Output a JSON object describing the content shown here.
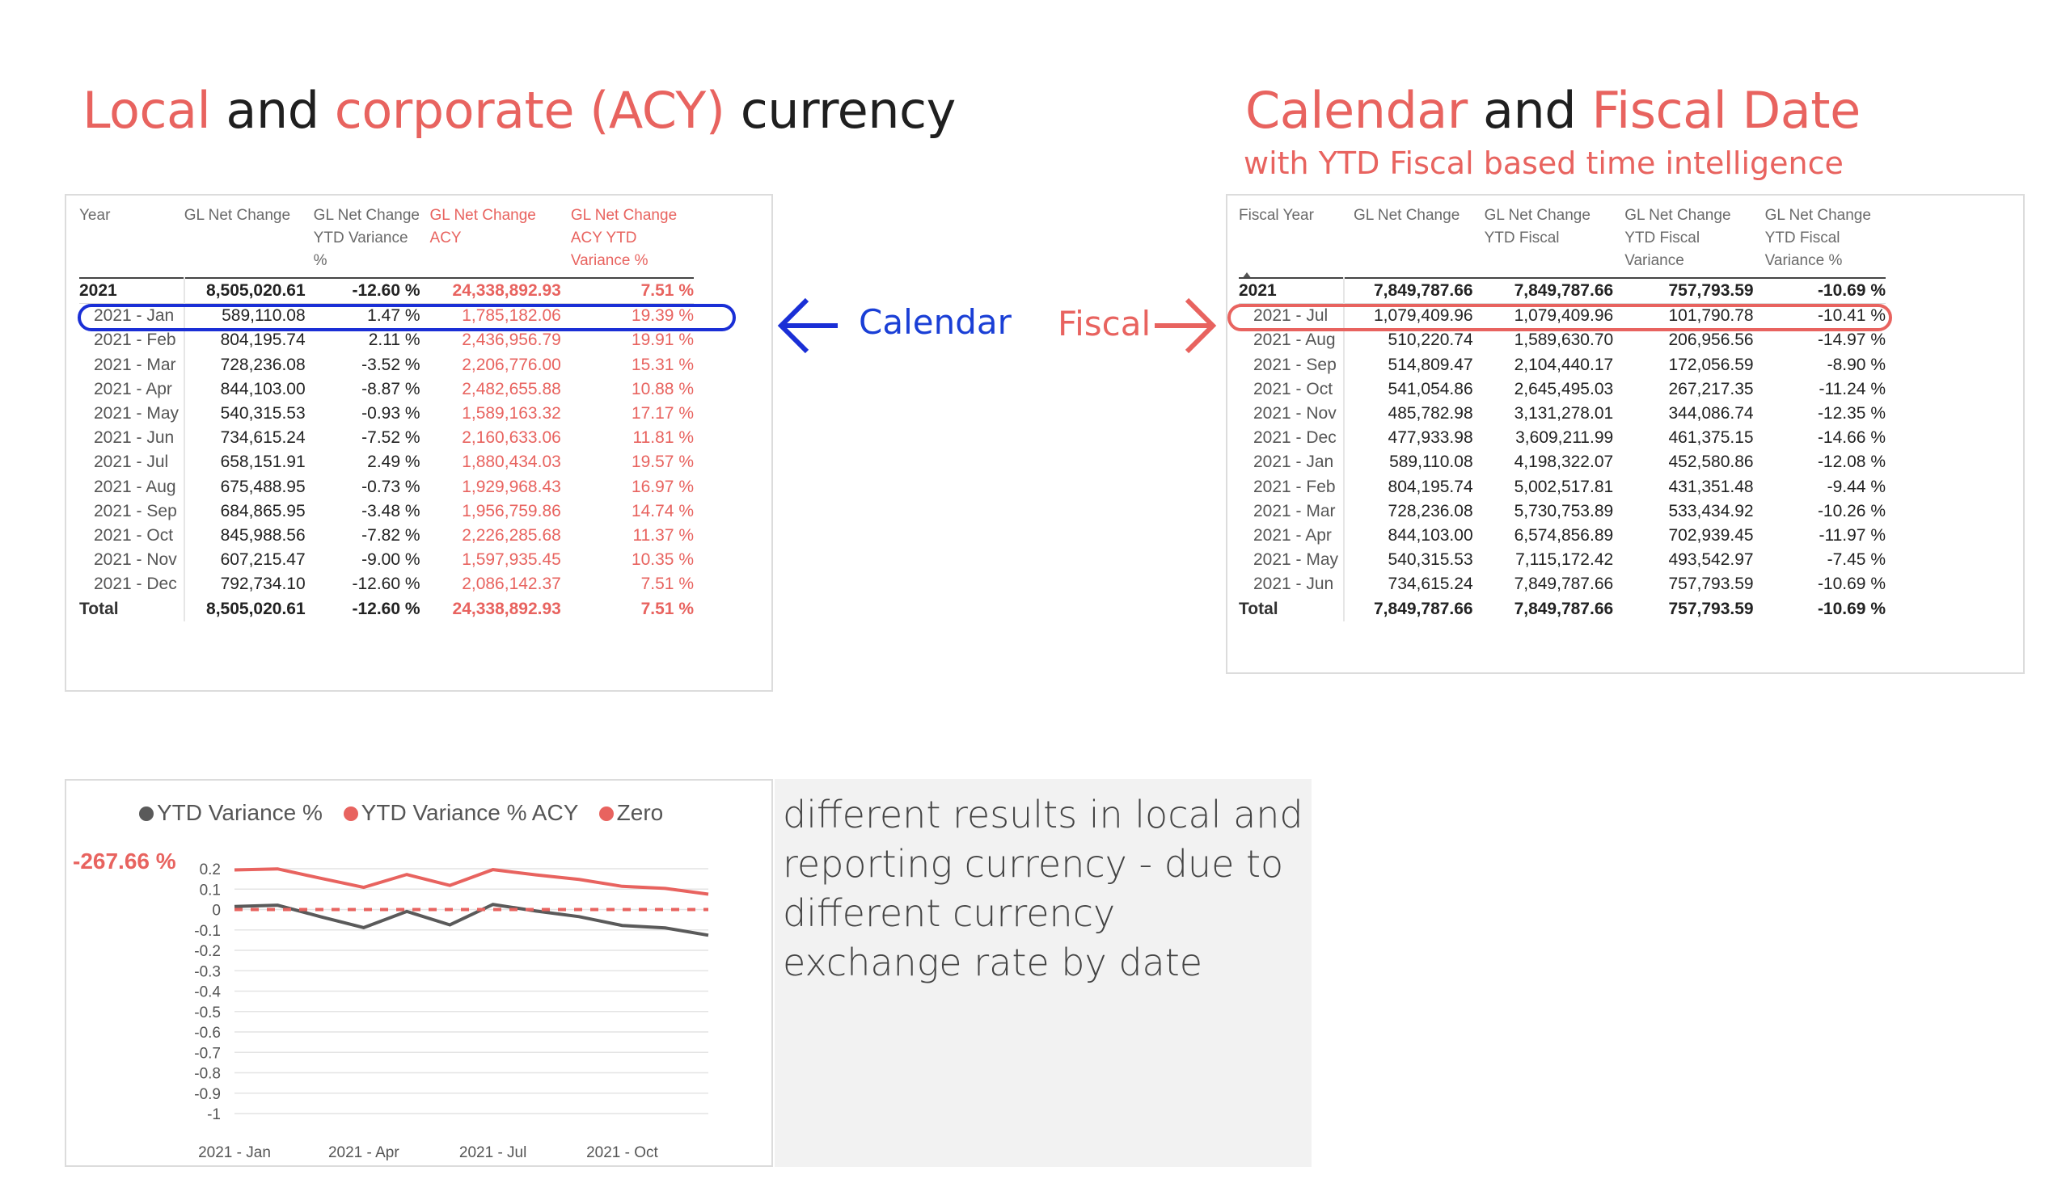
{
  "left_title": {
    "p1": "Local",
    "p2": " and ",
    "p3": "corporate (ACY)",
    "p4": " currency"
  },
  "right_title": {
    "p1": "Calendar",
    "p2": " and ",
    "p3": "Fiscal Date",
    "subtitle": "with YTD Fiscal based time intelligence"
  },
  "annotations": {
    "calendar": "Calendar",
    "fiscal": "Fiscal"
  },
  "calendar_table": {
    "headers": [
      "Year",
      "GL Net Change",
      "GL Net Change YTD Variance %",
      "GL Net Change ACY",
      "GL Net Change ACY YTD Variance %"
    ],
    "year_row": [
      "2021",
      "8,505,020.61",
      "-12.60 %",
      "24,338,892.93",
      "7.51 %"
    ],
    "rows": [
      [
        "2021 - Jan",
        "589,110.08",
        "1.47 %",
        "1,785,182.06",
        "19.39 %"
      ],
      [
        "2021 - Feb",
        "804,195.74",
        "2.11 %",
        "2,436,956.79",
        "19.91 %"
      ],
      [
        "2021 - Mar",
        "728,236.08",
        "-3.52 %",
        "2,206,776.00",
        "15.31 %"
      ],
      [
        "2021 - Apr",
        "844,103.00",
        "-8.87 %",
        "2,482,655.88",
        "10.88 %"
      ],
      [
        "2021 - May",
        "540,315.53",
        "-0.93 %",
        "1,589,163.32",
        "17.17 %"
      ],
      [
        "2021 - Jun",
        "734,615.24",
        "-7.52 %",
        "2,160,633.06",
        "11.81 %"
      ],
      [
        "2021 - Jul",
        "658,151.91",
        "2.49 %",
        "1,880,434.03",
        "19.57 %"
      ],
      [
        "2021 - Aug",
        "675,488.95",
        "-0.73 %",
        "1,929,968.43",
        "16.97 %"
      ],
      [
        "2021 - Sep",
        "684,865.95",
        "-3.48 %",
        "1,956,759.86",
        "14.74 %"
      ],
      [
        "2021 - Oct",
        "845,988.56",
        "-7.82 %",
        "2,226,285.68",
        "11.37 %"
      ],
      [
        "2021 - Nov",
        "607,215.47",
        "-9.00 %",
        "1,597,935.45",
        "10.35 %"
      ],
      [
        "2021 - Dec",
        "792,734.10",
        "-12.60 %",
        "2,086,142.37",
        "7.51 %"
      ]
    ],
    "total_row": [
      "Total",
      "8,505,020.61",
      "-12.60 %",
      "24,338,892.93",
      "7.51 %"
    ]
  },
  "fiscal_table": {
    "headers": [
      "Fiscal Year",
      "GL Net Change",
      "GL Net Change YTD Fiscal",
      "GL Net Change YTD Fiscal Variance",
      "GL Net Change YTD Fiscal Variance %"
    ],
    "year_row": [
      "2021",
      "7,849,787.66",
      "7,849,787.66",
      "757,793.59",
      "-10.69 %"
    ],
    "rows": [
      [
        "2021 - Jul",
        "1,079,409.96",
        "1,079,409.96",
        "101,790.78",
        "-10.41 %"
      ],
      [
        "2021 - Aug",
        "510,220.74",
        "1,589,630.70",
        "206,956.56",
        "-14.97 %"
      ],
      [
        "2021 - Sep",
        "514,809.47",
        "2,104,440.17",
        "172,056.59",
        "-8.90 %"
      ],
      [
        "2021 - Oct",
        "541,054.86",
        "2,645,495.03",
        "267,217.35",
        "-11.24 %"
      ],
      [
        "2021 - Nov",
        "485,782.98",
        "3,131,278.01",
        "344,086.74",
        "-12.35 %"
      ],
      [
        "2021 - Dec",
        "477,933.98",
        "3,609,211.99",
        "461,375.15",
        "-14.66 %"
      ],
      [
        "2021 - Jan",
        "589,110.08",
        "4,198,322.07",
        "452,580.86",
        "-12.08 %"
      ],
      [
        "2021 - Feb",
        "804,195.74",
        "5,002,517.81",
        "431,351.48",
        "-9.44 %"
      ],
      [
        "2021 - Mar",
        "728,236.08",
        "5,730,753.89",
        "533,434.92",
        "-10.26 %"
      ],
      [
        "2021 - Apr",
        "844,103.00",
        "6,574,856.89",
        "702,939.45",
        "-11.97 %"
      ],
      [
        "2021 - May",
        "540,315.53",
        "7,115,172.42",
        "493,542.97",
        "-7.45 %"
      ],
      [
        "2021 - Jun",
        "734,615.24",
        "7,849,787.66",
        "757,793.59",
        "-10.69 %"
      ]
    ],
    "total_row": [
      "Total",
      "7,849,787.66",
      "7,849,787.66",
      "757,793.59",
      "-10.69 %"
    ]
  },
  "note_text": "different results in local and reporting currency - due to different currency exchange rate by date",
  "chart_data": {
    "type": "line",
    "big_label": "-267.66 %",
    "legend": [
      "YTD Variance %",
      "YTD Variance % ACY",
      "Zero"
    ],
    "colors": {
      "ytd": "#5a5a5a",
      "acy": "#E8635F",
      "zero": "#E8635F"
    },
    "x": [
      "2021 - Jan",
      "2021 - Feb",
      "2021 - Mar",
      "2021 - Apr",
      "2021 - May",
      "2021 - Jun",
      "2021 - Jul",
      "2021 - Aug",
      "2021 - Sep",
      "2021 - Oct",
      "2021 - Nov",
      "2021 - Dec"
    ],
    "x_tick_labels": [
      "2021 - Jan",
      "2021 - Apr",
      "2021 - Jul",
      "2021 - Oct"
    ],
    "y_ticks": [
      "0.2",
      "0.1",
      "0",
      "-0.1",
      "-0.2",
      "-0.3",
      "-0.4",
      "-0.5",
      "-0.6",
      "-0.7",
      "-0.8",
      "-0.9",
      "-1"
    ],
    "ylim": [
      -1,
      0.2
    ],
    "series": [
      {
        "name": "YTD Variance %",
        "values": [
          0.0147,
          0.0211,
          -0.0352,
          -0.0887,
          -0.0093,
          -0.0752,
          0.0249,
          -0.0073,
          -0.0348,
          -0.0782,
          -0.09,
          -0.126
        ]
      },
      {
        "name": "YTD Variance % ACY",
        "values": [
          0.1939,
          0.1991,
          0.1531,
          0.1088,
          0.1717,
          0.1181,
          0.1957,
          0.1697,
          0.1474,
          0.1137,
          0.1035,
          0.0751
        ]
      },
      {
        "name": "Zero",
        "values": [
          0,
          0,
          0,
          0,
          0,
          0,
          0,
          0,
          0,
          0,
          0,
          0
        ]
      }
    ],
    "grid": true
  }
}
